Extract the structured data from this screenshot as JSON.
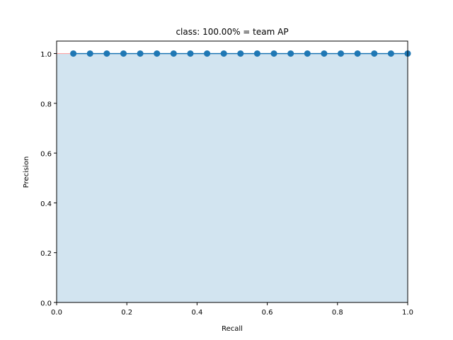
{
  "chart_data": {
    "type": "area",
    "title": "class: 100.00% = team AP",
    "xlabel": "Recall",
    "ylabel": "Precision",
    "xlim": [
      0,
      1
    ],
    "ylim": [
      0,
      1.05
    ],
    "x_ticks": [
      "0.0",
      "0.2",
      "0.4",
      "0.6",
      "0.8",
      "1.0"
    ],
    "y_ticks": [
      "0.0",
      "0.2",
      "0.4",
      "0.6",
      "0.8",
      "1.0"
    ],
    "grid": false,
    "series": [
      {
        "x": [
          0.0476,
          0.0952,
          0.1429,
          0.1905,
          0.2381,
          0.2857,
          0.3333,
          0.381,
          0.4286,
          0.4762,
          0.5238,
          0.5714,
          0.619,
          0.6667,
          0.7143,
          0.7619,
          0.8095,
          0.8571,
          0.9048,
          0.9524,
          1.0
        ],
        "y": [
          1,
          1,
          1,
          1,
          1,
          1,
          1,
          1,
          1,
          1,
          1,
          1,
          1,
          1,
          1,
          1,
          1,
          1,
          1,
          1,
          1
        ],
        "color": "#1f77b4"
      }
    ],
    "fill_color": "#1f77b4",
    "outline_color": "#ff9999"
  }
}
